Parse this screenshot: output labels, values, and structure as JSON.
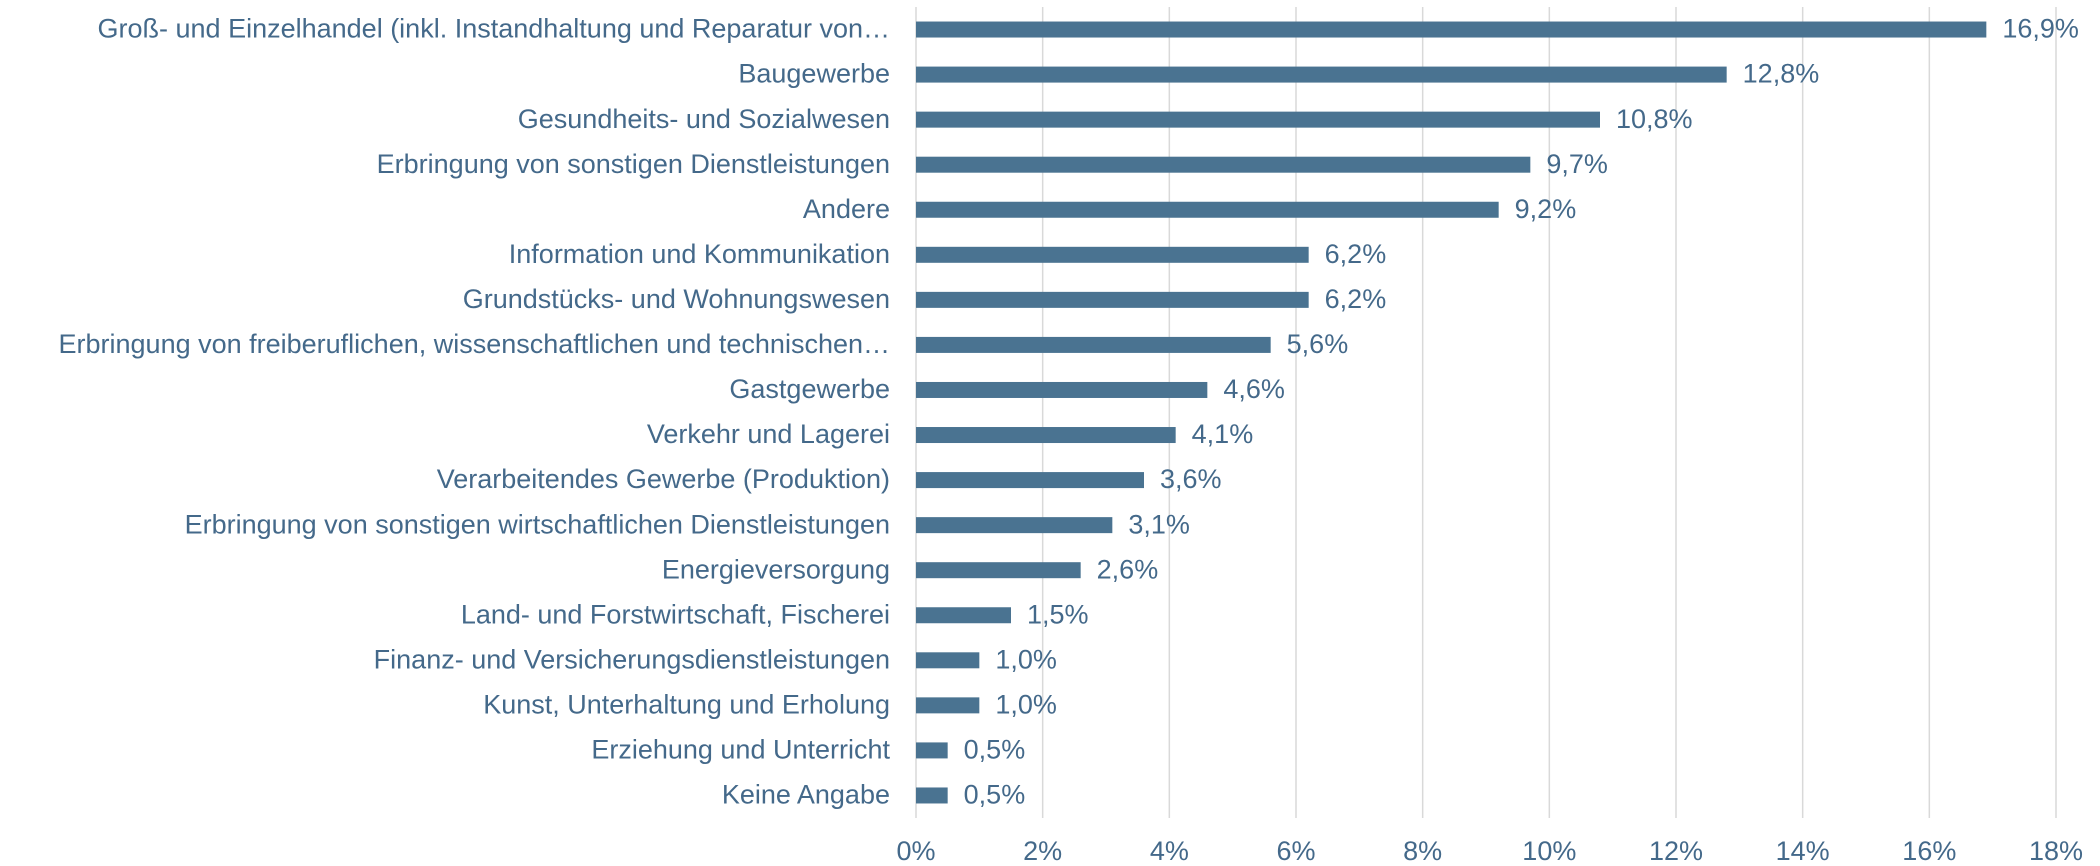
{
  "chart_data": {
    "type": "barh",
    "categories": [
      "Groß- und Einzelhandel (inkl. Instandhaltung und Reparatur von…",
      "Baugewerbe",
      "Gesundheits- und Sozialwesen",
      "Erbringung von sonstigen Dienstleistungen",
      "Andere",
      "Information und Kommunikation",
      "Grundstücks- und Wohnungswesen",
      "Erbringung von freiberuflichen, wissenschaftlichen und technischen…",
      "Gastgewerbe",
      "Verkehr und Lagerei",
      "Verarbeitendes Gewerbe (Produktion)",
      "Erbringung von sonstigen wirtschaftlichen Dienstleistungen",
      "Energieversorgung",
      "Land- und Forstwirtschaft, Fischerei",
      "Finanz- und Versicherungsdienstleistungen",
      "Kunst, Unterhaltung und Erholung",
      "Erziehung und Unterricht",
      "Keine Angabe"
    ],
    "values": [
      16.9,
      12.8,
      10.8,
      9.7,
      9.2,
      6.2,
      6.2,
      5.6,
      4.6,
      4.1,
      3.6,
      3.1,
      2.6,
      1.5,
      1.0,
      1.0,
      0.5,
      0.5
    ],
    "value_labels": [
      "16,9%",
      "12,8%",
      "10,8%",
      "9,7%",
      "9,2%",
      "6,2%",
      "6,2%",
      "5,6%",
      "4,6%",
      "4,1%",
      "3,6%",
      "3,1%",
      "2,6%",
      "1,5%",
      "1,0%",
      "1,0%",
      "0,5%",
      "0,5%"
    ],
    "color": "#4a7391",
    "xlim": [
      0,
      18
    ],
    "xticks": [
      {
        "value": 0,
        "label": "0%"
      },
      {
        "value": 2,
        "label": "2%"
      },
      {
        "value": 4,
        "label": "4%"
      },
      {
        "value": 6,
        "label": "6%"
      },
      {
        "value": 8,
        "label": "8%"
      },
      {
        "value": 10,
        "label": "10%"
      },
      {
        "value": 12,
        "label": "12%"
      },
      {
        "value": 14,
        "label": "14%"
      },
      {
        "value": 16,
        "label": "16%"
      },
      {
        "value": 18,
        "label": "18%"
      }
    ],
    "grid": true
  }
}
